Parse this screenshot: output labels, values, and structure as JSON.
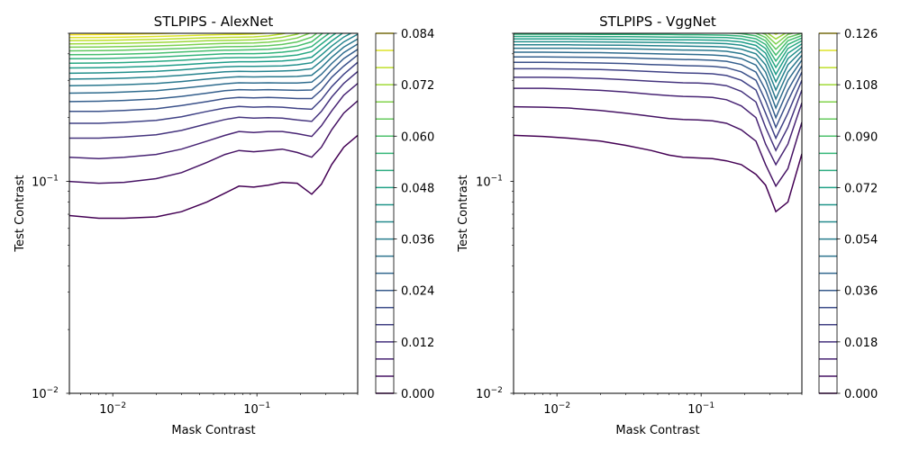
{
  "figure": {
    "background": "#ffffff"
  },
  "chart_data": [
    {
      "type": "contour",
      "title": "STLPIPS - AlexNet",
      "xlabel": "Mask Contrast",
      "ylabel": "Test Contrast",
      "xscale": "log",
      "yscale": "log",
      "xlim": [
        0.005,
        0.5
      ],
      "ylim": [
        0.01,
        0.5
      ],
      "xticks": [
        {
          "value": 0.01,
          "base": "10",
          "exp": "−2"
        },
        {
          "value": 0.1,
          "base": "10",
          "exp": "−1"
        }
      ],
      "yticks": [
        {
          "value": 0.01,
          "base": "10",
          "exp": "−2"
        },
        {
          "value": 0.1,
          "base": "10",
          "exp": "−1"
        }
      ],
      "colormap": "viridis",
      "colorbar": {
        "min": 0.0,
        "max": 0.084,
        "levels": 22,
        "ticks": [
          "0.000",
          "0.012",
          "0.024",
          "0.036",
          "0.048",
          "0.060",
          "0.072",
          "0.084"
        ]
      },
      "mask_contrast": [
        0.005,
        0.008,
        0.012,
        0.02,
        0.03,
        0.045,
        0.06,
        0.075,
        0.095,
        0.12,
        0.15,
        0.19,
        0.24,
        0.28,
        0.33,
        0.4,
        0.5
      ],
      "contour_levels_test_contrast": [
        [
          0.069,
          0.067,
          0.067,
          0.068,
          0.072,
          0.08,
          0.088,
          0.095,
          0.094,
          0.096,
          0.099,
          0.098,
          0.087,
          0.097,
          0.12,
          0.145,
          0.165
        ],
        [
          0.1,
          0.098,
          0.099,
          0.103,
          0.11,
          0.123,
          0.134,
          0.14,
          0.138,
          0.14,
          0.142,
          0.137,
          0.13,
          0.145,
          0.175,
          0.21,
          0.24
        ],
        [
          0.13,
          0.128,
          0.13,
          0.134,
          0.142,
          0.155,
          0.165,
          0.172,
          0.17,
          0.172,
          0.172,
          0.168,
          0.163,
          0.183,
          0.215,
          0.255,
          0.29
        ],
        [
          0.16,
          0.16,
          0.162,
          0.166,
          0.174,
          0.187,
          0.196,
          0.201,
          0.199,
          0.2,
          0.199,
          0.195,
          0.192,
          0.214,
          0.25,
          0.29,
          0.33
        ],
        [
          0.188,
          0.188,
          0.19,
          0.194,
          0.202,
          0.214,
          0.222,
          0.226,
          0.224,
          0.225,
          0.224,
          0.221,
          0.219,
          0.243,
          0.28,
          0.32,
          0.365
        ],
        [
          0.214,
          0.214,
          0.216,
          0.22,
          0.228,
          0.238,
          0.246,
          0.249,
          0.248,
          0.249,
          0.248,
          0.246,
          0.246,
          0.27,
          0.31,
          0.35,
          0.395
        ],
        [
          0.238,
          0.239,
          0.241,
          0.245,
          0.252,
          0.261,
          0.268,
          0.271,
          0.27,
          0.271,
          0.27,
          0.269,
          0.27,
          0.295,
          0.335,
          0.38,
          0.42
        ],
        [
          0.261,
          0.262,
          0.264,
          0.268,
          0.275,
          0.283,
          0.289,
          0.292,
          0.291,
          0.292,
          0.291,
          0.291,
          0.294,
          0.32,
          0.36,
          0.405,
          0.445
        ],
        [
          0.283,
          0.284,
          0.286,
          0.29,
          0.296,
          0.304,
          0.309,
          0.312,
          0.311,
          0.312,
          0.312,
          0.313,
          0.317,
          0.345,
          0.385,
          0.43,
          0.47
        ],
        [
          0.304,
          0.305,
          0.307,
          0.311,
          0.317,
          0.324,
          0.329,
          0.331,
          0.33,
          0.331,
          0.332,
          0.334,
          0.34,
          0.37,
          0.41,
          0.455,
          0.495
        ],
        [
          0.324,
          0.325,
          0.327,
          0.331,
          0.336,
          0.343,
          0.347,
          0.349,
          0.349,
          0.35,
          0.351,
          0.355,
          0.363,
          0.395,
          0.435,
          0.48,
          0.52
        ],
        [
          0.343,
          0.344,
          0.346,
          0.35,
          0.355,
          0.361,
          0.365,
          0.367,
          0.367,
          0.368,
          0.37,
          0.375,
          0.386,
          0.42,
          0.46,
          0.505,
          0.545
        ],
        [
          0.361,
          0.362,
          0.364,
          0.368,
          0.373,
          0.379,
          0.383,
          0.384,
          0.384,
          0.386,
          0.389,
          0.395,
          0.41,
          0.445,
          0.485,
          0.53,
          0.57
        ],
        [
          0.379,
          0.38,
          0.382,
          0.386,
          0.391,
          0.396,
          0.4,
          0.401,
          0.401,
          0.403,
          0.407,
          0.415,
          0.433,
          0.47,
          0.51,
          0.555,
          0.595
        ],
        [
          0.396,
          0.397,
          0.399,
          0.403,
          0.408,
          0.413,
          0.416,
          0.417,
          0.418,
          0.42,
          0.425,
          0.435,
          0.456,
          0.495,
          0.535,
          0.58,
          0.62
        ],
        [
          0.413,
          0.414,
          0.416,
          0.42,
          0.424,
          0.429,
          0.432,
          0.433,
          0.434,
          0.437,
          0.443,
          0.455,
          0.48,
          0.52,
          0.56,
          0.605,
          0.645
        ],
        [
          0.43,
          0.431,
          0.433,
          0.436,
          0.44,
          0.445,
          0.448,
          0.449,
          0.45,
          0.454,
          0.461,
          0.475,
          0.505,
          0.545,
          0.585,
          0.63,
          0.67
        ],
        [
          0.446,
          0.447,
          0.449,
          0.452,
          0.456,
          0.461,
          0.463,
          0.464,
          0.466,
          0.47,
          0.479,
          0.495,
          0.53,
          0.57,
          0.61,
          0.655,
          0.695
        ],
        [
          0.462,
          0.463,
          0.465,
          0.468,
          0.472,
          0.476,
          0.478,
          0.479,
          0.481,
          0.486,
          0.497,
          0.515,
          0.555,
          0.595,
          0.635,
          0.68,
          0.72
        ],
        [
          0.477,
          0.478,
          0.48,
          0.483,
          0.487,
          0.491,
          0.493,
          0.494,
          0.496,
          0.502,
          0.515,
          0.535,
          0.58,
          0.62,
          0.66,
          0.705,
          0.745
        ],
        [
          0.492,
          0.493,
          0.495,
          0.498,
          0.502,
          0.506,
          0.508,
          0.509,
          0.511,
          0.518,
          0.533,
          0.555,
          0.605,
          0.645,
          0.685,
          0.73,
          0.77
        ]
      ]
    },
    {
      "type": "contour",
      "title": "STLPIPS - VggNet",
      "xlabel": "Mask Contrast",
      "ylabel": "Test Contrast",
      "xscale": "log",
      "yscale": "log",
      "xlim": [
        0.005,
        0.5
      ],
      "ylim": [
        0.01,
        0.5
      ],
      "xticks": [
        {
          "value": 0.01,
          "base": "10",
          "exp": "−2"
        },
        {
          "value": 0.1,
          "base": "10",
          "exp": "−1"
        }
      ],
      "yticks": [
        {
          "value": 0.01,
          "base": "10",
          "exp": "−2"
        },
        {
          "value": 0.1,
          "base": "10",
          "exp": "−1"
        }
      ],
      "colormap": "viridis",
      "colorbar": {
        "min": 0.0,
        "max": 0.126,
        "levels": 22,
        "ticks": [
          "0.000",
          "0.018",
          "0.036",
          "0.054",
          "0.072",
          "0.090",
          "0.108",
          "0.126"
        ]
      },
      "mask_contrast": [
        0.005,
        0.008,
        0.012,
        0.02,
        0.03,
        0.045,
        0.06,
        0.075,
        0.095,
        0.12,
        0.15,
        0.19,
        0.24,
        0.28,
        0.33,
        0.4,
        0.5
      ],
      "contour_levels_test_contrast": [
        [
          0.165,
          0.163,
          0.16,
          0.155,
          0.148,
          0.14,
          0.133,
          0.13,
          0.129,
          0.128,
          0.125,
          0.12,
          0.108,
          0.096,
          0.072,
          0.08,
          0.135
        ],
        [
          0.225,
          0.224,
          0.222,
          0.216,
          0.21,
          0.203,
          0.198,
          0.196,
          0.195,
          0.193,
          0.188,
          0.175,
          0.155,
          0.12,
          0.095,
          0.115,
          0.19
        ],
        [
          0.275,
          0.275,
          0.273,
          0.269,
          0.264,
          0.258,
          0.254,
          0.252,
          0.251,
          0.249,
          0.243,
          0.227,
          0.2,
          0.15,
          0.12,
          0.15,
          0.235
        ],
        [
          0.31,
          0.31,
          0.309,
          0.306,
          0.302,
          0.297,
          0.294,
          0.292,
          0.291,
          0.289,
          0.283,
          0.266,
          0.237,
          0.18,
          0.14,
          0.18,
          0.27
        ],
        [
          0.34,
          0.34,
          0.339,
          0.337,
          0.334,
          0.33,
          0.327,
          0.325,
          0.324,
          0.322,
          0.316,
          0.3,
          0.27,
          0.21,
          0.16,
          0.21,
          0.3
        ],
        [
          0.365,
          0.365,
          0.364,
          0.362,
          0.36,
          0.356,
          0.354,
          0.352,
          0.351,
          0.349,
          0.344,
          0.329,
          0.3,
          0.24,
          0.18,
          0.24,
          0.328
        ],
        [
          0.387,
          0.387,
          0.386,
          0.385,
          0.383,
          0.38,
          0.378,
          0.376,
          0.375,
          0.373,
          0.369,
          0.356,
          0.328,
          0.27,
          0.2,
          0.27,
          0.352
        ],
        [
          0.407,
          0.407,
          0.406,
          0.405,
          0.403,
          0.401,
          0.399,
          0.398,
          0.397,
          0.395,
          0.391,
          0.38,
          0.354,
          0.3,
          0.222,
          0.3,
          0.374
        ],
        [
          0.425,
          0.425,
          0.425,
          0.424,
          0.422,
          0.42,
          0.418,
          0.417,
          0.416,
          0.415,
          0.411,
          0.401,
          0.378,
          0.328,
          0.245,
          0.328,
          0.394
        ],
        [
          0.441,
          0.441,
          0.441,
          0.44,
          0.439,
          0.437,
          0.436,
          0.435,
          0.434,
          0.433,
          0.43,
          0.421,
          0.4,
          0.355,
          0.27,
          0.355,
          0.413
        ],
        [
          0.456,
          0.456,
          0.456,
          0.455,
          0.454,
          0.453,
          0.452,
          0.451,
          0.45,
          0.449,
          0.447,
          0.439,
          0.42,
          0.38,
          0.295,
          0.38,
          0.43
        ],
        [
          0.47,
          0.47,
          0.47,
          0.469,
          0.468,
          0.467,
          0.466,
          0.466,
          0.465,
          0.464,
          0.462,
          0.455,
          0.438,
          0.403,
          0.32,
          0.403,
          0.446
        ],
        [
          0.483,
          0.483,
          0.483,
          0.482,
          0.482,
          0.481,
          0.48,
          0.48,
          0.479,
          0.478,
          0.477,
          0.471,
          0.455,
          0.424,
          0.345,
          0.424,
          0.461
        ],
        [
          0.495,
          0.495,
          0.495,
          0.494,
          0.494,
          0.493,
          0.493,
          0.492,
          0.492,
          0.491,
          0.49,
          0.485,
          0.471,
          0.443,
          0.37,
          0.443,
          0.475
        ],
        [
          0.506,
          0.506,
          0.506,
          0.506,
          0.505,
          0.505,
          0.504,
          0.504,
          0.504,
          0.503,
          0.502,
          0.498,
          0.486,
          0.461,
          0.395,
          0.461,
          0.488
        ],
        [
          0.517,
          0.517,
          0.517,
          0.517,
          0.516,
          0.516,
          0.515,
          0.515,
          0.515,
          0.514,
          0.513,
          0.51,
          0.5,
          0.478,
          0.42,
          0.478,
          0.5
        ],
        [
          0.527,
          0.527,
          0.527,
          0.527,
          0.527,
          0.526,
          0.526,
          0.526,
          0.525,
          0.525,
          0.524,
          0.521,
          0.513,
          0.494,
          0.445,
          0.494,
          0.512
        ],
        [
          0.537,
          0.537,
          0.537,
          0.537,
          0.537,
          0.536,
          0.536,
          0.536,
          0.535,
          0.535,
          0.534,
          0.532,
          0.525,
          0.509,
          0.47,
          0.509,
          0.523
        ],
        [
          0.546,
          0.546,
          0.546,
          0.546,
          0.546,
          0.546,
          0.545,
          0.545,
          0.545,
          0.545,
          0.544,
          0.542,
          0.537,
          0.523,
          0.495,
          0.523,
          0.534
        ],
        [
          0.555,
          0.555,
          0.555,
          0.555,
          0.555,
          0.555,
          0.554,
          0.554,
          0.554,
          0.554,
          0.553,
          0.552,
          0.548,
          0.537,
          0.52,
          0.537,
          0.545
        ],
        [
          0.564,
          0.564,
          0.564,
          0.564,
          0.564,
          0.564,
          0.563,
          0.563,
          0.563,
          0.563,
          0.562,
          0.561,
          0.558,
          0.55,
          0.545,
          0.55,
          0.556
        ]
      ]
    }
  ]
}
